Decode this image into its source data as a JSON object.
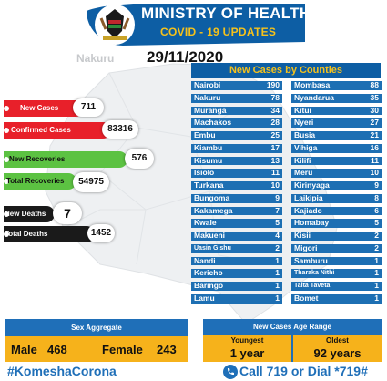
{
  "header": {
    "ministry_title": "MINISTRY OF HEALTH",
    "covid_title": "COVID - 19 UPDATES",
    "region": "Nakuru",
    "date": "29/11/2020"
  },
  "stats": {
    "new_cases_label": "New Cases",
    "new_cases_value": "711",
    "confirmed_label": "Confirmed Cases",
    "confirmed_value": "83316",
    "new_recoveries_label": "New Recoveries",
    "new_recoveries_value": "576",
    "total_recoveries_label": "Total Recoveries",
    "total_recoveries_value": "54975",
    "new_deaths_label": "New Deaths",
    "new_deaths_value": "7",
    "total_deaths_label": "Total Deaths",
    "total_deaths_value": "1452"
  },
  "counties": {
    "title": "New Cases by Counties",
    "left": [
      {
        "name": "Nairobi",
        "value": "190"
      },
      {
        "name": "Nakuru",
        "value": "78"
      },
      {
        "name": "Muranga",
        "value": "34"
      },
      {
        "name": "Machakos",
        "value": "28"
      },
      {
        "name": "Embu",
        "value": "25"
      },
      {
        "name": "Kiambu",
        "value": "17"
      },
      {
        "name": "Kisumu",
        "value": "13"
      },
      {
        "name": "Isiolo",
        "value": "11"
      },
      {
        "name": "Turkana",
        "value": "10"
      },
      {
        "name": "Bungoma",
        "value": "9"
      },
      {
        "name": "Kakamega",
        "value": "7"
      },
      {
        "name": "Kwale",
        "value": "5"
      },
      {
        "name": "Makueni",
        "value": "4"
      },
      {
        "name": "Uasin Gishu",
        "value": "2"
      },
      {
        "name": "Nandi",
        "value": "1"
      },
      {
        "name": "Kericho",
        "value": "1"
      },
      {
        "name": "Baringo",
        "value": "1"
      },
      {
        "name": "Lamu",
        "value": "1"
      }
    ],
    "right": [
      {
        "name": "Mombasa",
        "value": "88"
      },
      {
        "name": "Nyandarua",
        "value": "35"
      },
      {
        "name": "Kitui",
        "value": "30"
      },
      {
        "name": "Nyeri",
        "value": "27"
      },
      {
        "name": "Busia",
        "value": "21"
      },
      {
        "name": "Vihiga",
        "value": "16"
      },
      {
        "name": "Kilifi",
        "value": "11"
      },
      {
        "name": "Meru",
        "value": "10"
      },
      {
        "name": "Kirinyaga",
        "value": "9"
      },
      {
        "name": "Laikipia",
        "value": "8"
      },
      {
        "name": "Kajiado",
        "value": "6"
      },
      {
        "name": "Homabay",
        "value": "5"
      },
      {
        "name": "Kisii",
        "value": "2"
      },
      {
        "name": "Migori",
        "value": "2"
      },
      {
        "name": "Samburu",
        "value": "1"
      },
      {
        "name": "Tharaka Nithi",
        "value": "1"
      },
      {
        "name": "Taita Taveta",
        "value": "1"
      },
      {
        "name": "Bomet",
        "value": "1"
      }
    ]
  },
  "sex": {
    "title": "Sex Aggregate",
    "male_label": "Male",
    "male_value": "468",
    "female_label": "Female",
    "female_value": "243"
  },
  "age": {
    "title": "New Cases Age Range",
    "youngest_label": "Youngest",
    "youngest_value": "1 year",
    "oldest_label": "Oldest",
    "oldest_value": "92 years"
  },
  "footer": {
    "hashtag": "#KomeshaCorona",
    "call": "Call  719 or Dial *719#"
  },
  "colors": {
    "primary_blue": "#1f6fb8",
    "accent_yellow": "#f6b21b",
    "red": "#e8202a",
    "green": "#5cc242",
    "black": "#1a1a1a"
  }
}
